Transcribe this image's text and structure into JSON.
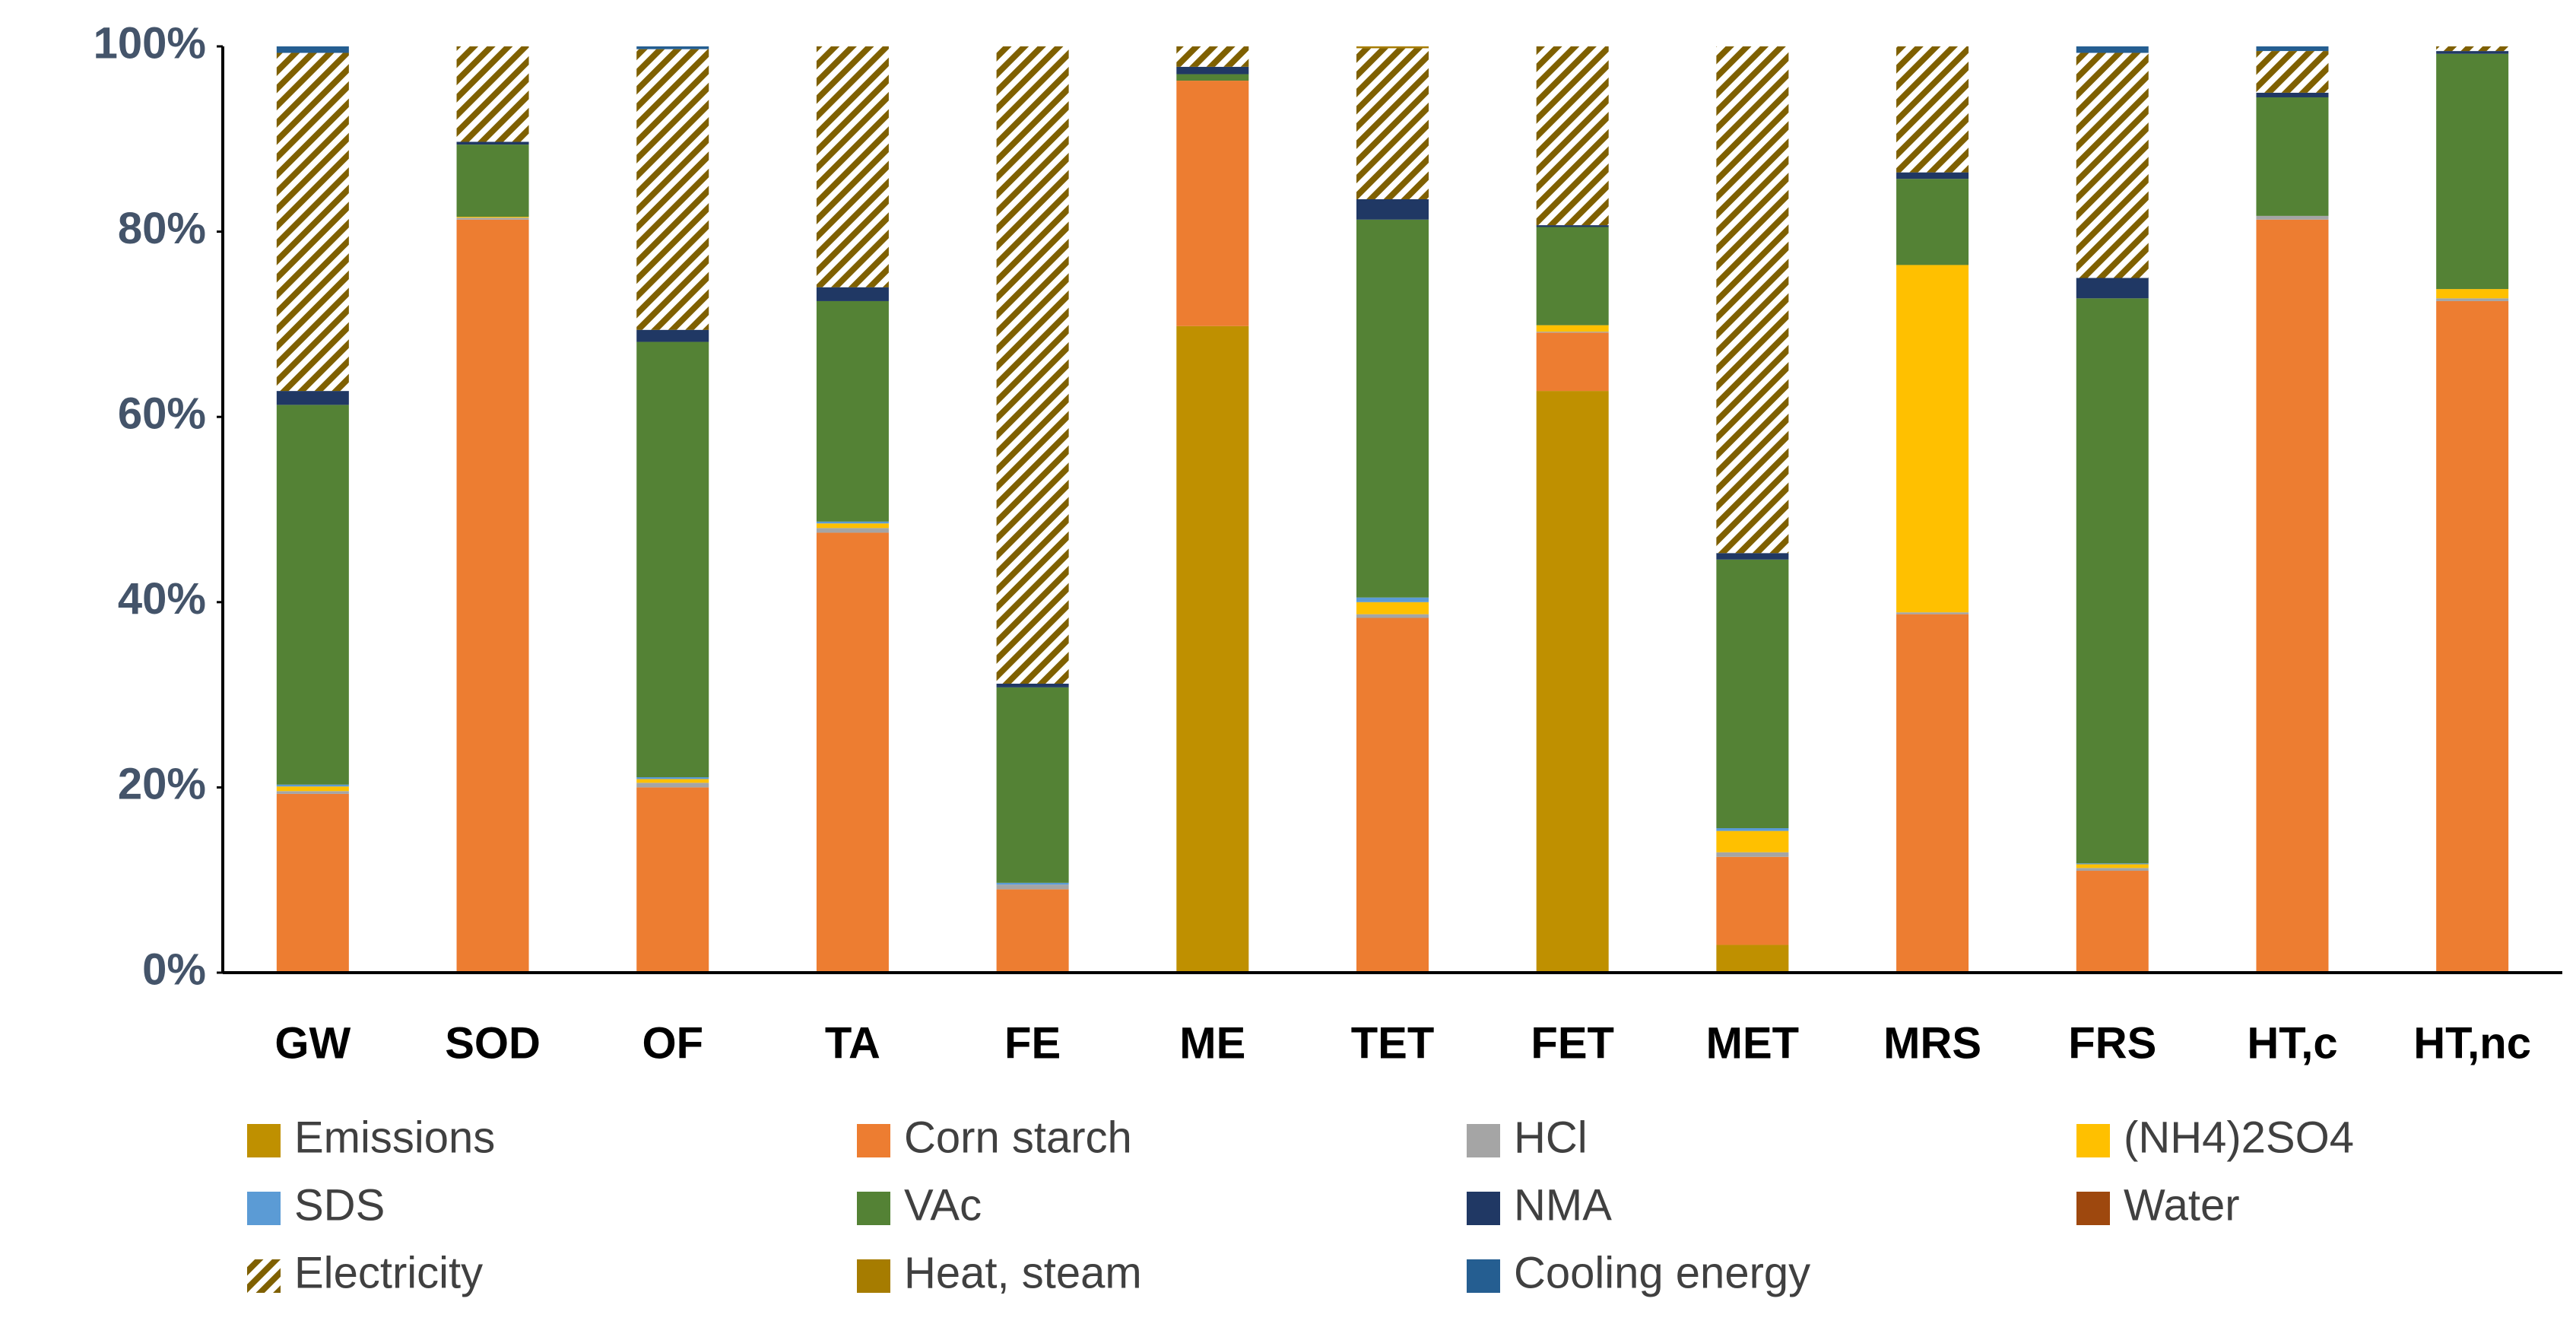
{
  "chart_data": {
    "type": "stacked_bar",
    "categories": [
      "GW",
      "SOD",
      "OF",
      "TA",
      "FE",
      "ME",
      "TET",
      "FET",
      "MET",
      "MRS",
      "FRS",
      "HT,c",
      "HT,nc"
    ],
    "series": [
      {
        "name": "Emissions",
        "color": "#bf9000",
        "values": [
          0,
          0,
          0,
          0,
          0,
          69.8,
          0,
          62.8,
          3,
          0,
          0,
          0,
          0
        ]
      },
      {
        "name": "Corn starch",
        "color": "#ed7d31",
        "values": [
          19.3,
          81.3,
          20,
          47.5,
          9,
          26.5,
          38.3,
          6.3,
          9.5,
          38.7,
          11,
          81.3,
          72.5
        ]
      },
      {
        "name": "HCl",
        "color": "#a5a5a5",
        "values": [
          0.3,
          0.2,
          0.5,
          0.5,
          0.5,
          0,
          0.4,
          0.1,
          0.5,
          0.2,
          0.3,
          0.4,
          0.3
        ]
      },
      {
        "name": "(NH4)2SO4",
        "color": "#ffc000",
        "values": [
          0.5,
          0.1,
          0.4,
          0.5,
          0,
          0,
          1.3,
          0.7,
          2.3,
          37.5,
          0.4,
          0,
          1
        ]
      },
      {
        "name": "SDS",
        "color": "#5b9bd5",
        "values": [
          0.2,
          0,
          0.2,
          0.2,
          0.2,
          0,
          0.5,
          0,
          0.3,
          0,
          0.1,
          0,
          0
        ]
      },
      {
        "name": "VAc",
        "color": "#548235",
        "values": [
          41,
          7.8,
          47,
          23.8,
          21.1,
          0.7,
          40.8,
          10.6,
          29,
          9.3,
          61,
          12.8,
          25.4
        ]
      },
      {
        "name": "NMA",
        "color": "#203864",
        "values": [
          1.5,
          0.3,
          1.3,
          1.5,
          0.4,
          0.8,
          2.2,
          0.2,
          0.7,
          0.7,
          2.2,
          0.5,
          0.3
        ]
      },
      {
        "name": "Water",
        "color": "#9e480e",
        "values": [
          0,
          0,
          0,
          0,
          0,
          0,
          0,
          0,
          0,
          0,
          0,
          0,
          0
        ]
      },
      {
        "name": "Electricity",
        "color": "#7f6000",
        "pattern": "hatch",
        "values": [
          36.5,
          10.3,
          30.3,
          26,
          68.8,
          2.2,
          16.3,
          19.3,
          54.7,
          13.6,
          24.3,
          4.5,
          0.5
        ]
      },
      {
        "name": "Heat, steam",
        "color": "#a67c00",
        "values": [
          0,
          0,
          0,
          0,
          0,
          0,
          0.2,
          0,
          0,
          0,
          0,
          0,
          0
        ]
      },
      {
        "name": "Cooling energy",
        "color": "#255e91",
        "values": [
          0.7,
          0,
          0.3,
          0,
          0,
          0,
          0,
          0,
          0,
          0,
          0.7,
          0.5,
          0
        ]
      }
    ],
    "ylim": [
      0,
      100
    ],
    "yticks": [
      {
        "value": 0,
        "label": "0%"
      },
      {
        "value": 20,
        "label": "20%"
      },
      {
        "value": 40,
        "label": "40%"
      },
      {
        "value": 60,
        "label": "60%"
      },
      {
        "value": 80,
        "label": "80%"
      },
      {
        "value": 100,
        "label": "100%"
      }
    ],
    "legend": "bottom"
  }
}
